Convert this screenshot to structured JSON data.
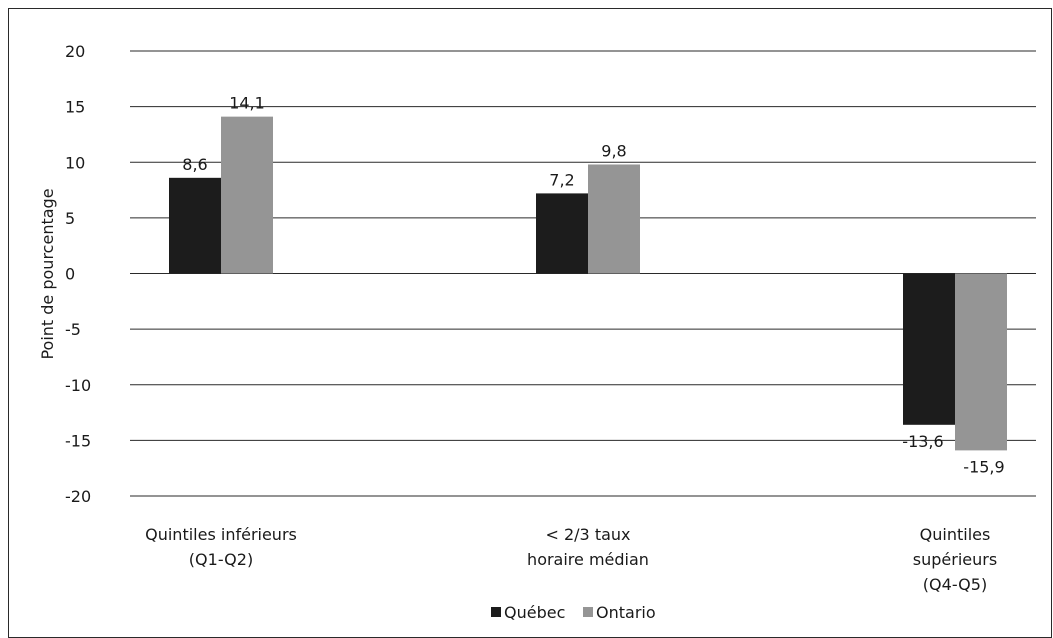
{
  "chart_data": {
    "type": "bar",
    "title": "",
    "ylabel": "Point de pourcentage",
    "xlabel": "",
    "ylim": [
      -20,
      20
    ],
    "yticks": [
      20,
      15,
      10,
      5,
      0,
      -5,
      -10,
      -15,
      -20
    ],
    "ytick_labels": [
      "20",
      "15",
      "10",
      "5",
      "0",
      "-5",
      "-10",
      "-15",
      "-20"
    ],
    "grid": true,
    "legend_position": "bottom",
    "categories": [
      [
        "Quintiles inférieurs",
        "(Q1-Q2)"
      ],
      [
        "< 2/3 taux",
        "horaire médian"
      ],
      [
        "Quintiles",
        "supérieurs",
        "(Q4-Q5)"
      ]
    ],
    "series": [
      {
        "name": "Québec",
        "color": "#1c1c1c",
        "values": [
          8.6,
          7.2,
          -13.6
        ],
        "labels": [
          "8,6",
          "7,2",
          "-13,6"
        ]
      },
      {
        "name": "Ontario",
        "color": "#959595",
        "values": [
          14.1,
          9.8,
          -15.9
        ],
        "labels": [
          "14,1",
          "9,8",
          "-15,9"
        ]
      }
    ]
  }
}
